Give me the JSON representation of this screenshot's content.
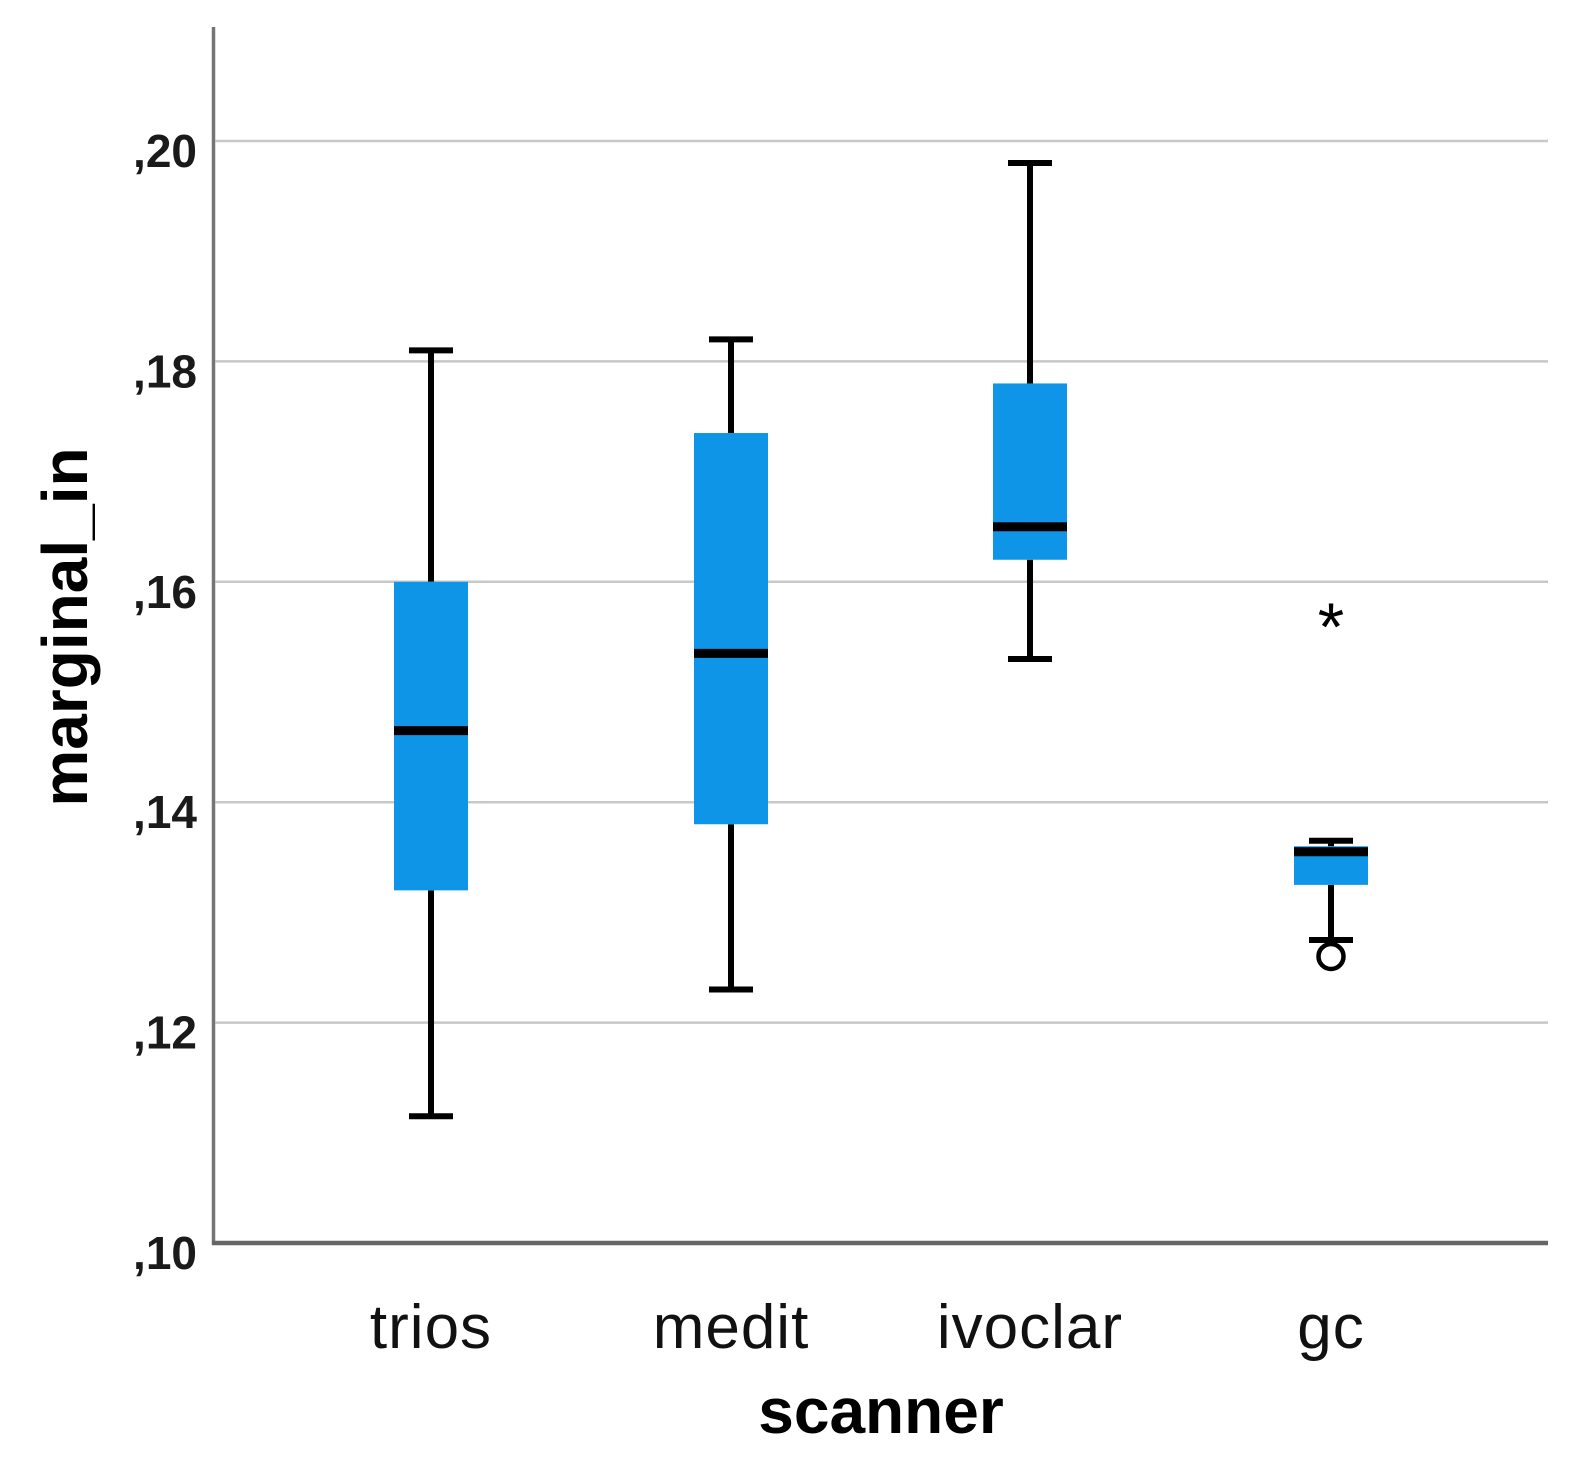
{
  "chart_data": {
    "type": "boxplot",
    "title": "",
    "xlabel": "scanner",
    "ylabel": "marginal_in",
    "categories": [
      "trios",
      "medit",
      "ivoclar",
      "gc"
    ],
    "y_ticks": [
      {
        "value": 0.1,
        "label": ",10"
      },
      {
        "value": 0.12,
        "label": ",12"
      },
      {
        "value": 0.14,
        "label": ",14"
      },
      {
        "value": 0.16,
        "label": ",16"
      },
      {
        "value": 0.18,
        "label": ",18"
      },
      {
        "value": 0.2,
        "label": ",20"
      }
    ],
    "ylim": [
      0.1,
      0.2105
    ],
    "decimal_separator": ",",
    "grid": true,
    "legend_position": "none",
    "colors": {
      "box_fill": "#0f95e8",
      "median_line": "#000000",
      "whisker": "#000000",
      "outlier": "#000000",
      "gridline": "#c8c8c8",
      "axis_spine": "#757575",
      "tick_text": "#1a1a1a"
    },
    "series": [
      {
        "name": "trios",
        "min": 0.1115,
        "q1": 0.132,
        "median": 0.1465,
        "q3": 0.16,
        "max": 0.181,
        "outliers": []
      },
      {
        "name": "medit",
        "min": 0.123,
        "q1": 0.138,
        "median": 0.1535,
        "q3": 0.1735,
        "max": 0.182,
        "outliers": []
      },
      {
        "name": "ivoclar",
        "min": 0.153,
        "q1": 0.162,
        "median": 0.165,
        "q3": 0.178,
        "max": 0.198,
        "outliers": []
      },
      {
        "name": "gc",
        "min": 0.1275,
        "q1": 0.1325,
        "median": 0.1355,
        "q3": 0.136,
        "max": 0.1365,
        "outliers": [
          {
            "marker": "circle",
            "value": 0.126,
            "severity": "mild"
          },
          {
            "marker": "asterisk",
            "value": 0.157,
            "severity": "extreme"
          }
        ]
      }
    ]
  }
}
